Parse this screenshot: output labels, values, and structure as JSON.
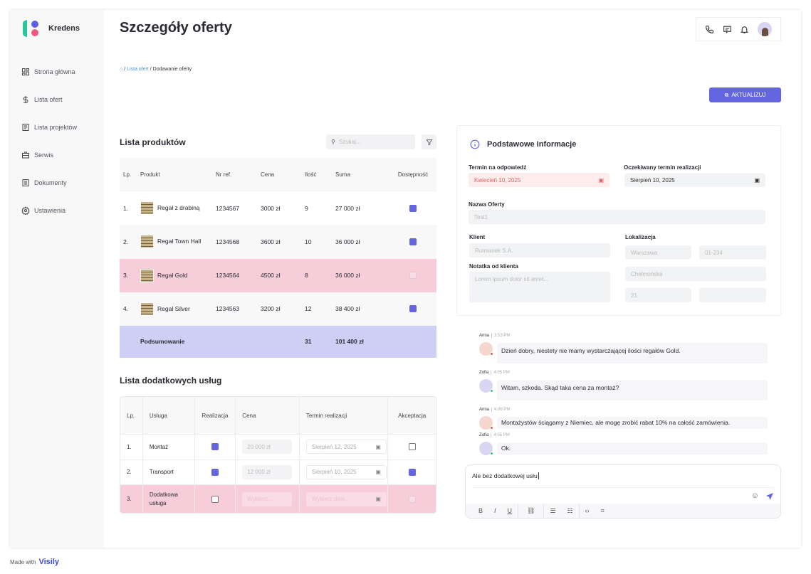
{
  "brand": "Kredens",
  "nav": [
    {
      "label": "Strona główna",
      "icon": "grid-icon"
    },
    {
      "label": "Lista ofert",
      "icon": "dollar-icon"
    },
    {
      "label": "Lista projektów",
      "icon": "document-icon"
    },
    {
      "label": "Serwis",
      "icon": "briefcase-icon"
    },
    {
      "label": "Dokumenty",
      "icon": "file-icon"
    },
    {
      "label": "Ustawienia",
      "icon": "gear-icon"
    }
  ],
  "page_title": "Szczegóły oferty",
  "breadcrumb": {
    "sep": " / ",
    "link": "Lista ofert",
    "current": "Dodawanie oferty"
  },
  "update_button": "AKTUALIZUJ",
  "products": {
    "title": "Lista produktów",
    "search_placeholder": "Szukaj...",
    "headers": [
      "Lp.",
      "Produkt",
      "Nr ref.",
      "Cena",
      "Ilość",
      "Suma",
      "Dostępność"
    ],
    "rows": [
      {
        "lp": "1.",
        "name": "Regał z drabiną",
        "ref": "1234567",
        "price": "3000 zł",
        "qty": "9",
        "sum": "27 000 zł",
        "available": true
      },
      {
        "lp": "2.",
        "name": "Regał Town Hall",
        "ref": "1234568",
        "price": "3600 zł",
        "qty": "10",
        "sum": "36 000 zł",
        "available": true
      },
      {
        "lp": "3.",
        "name": "Regał Gold",
        "ref": "1234564",
        "price": "4500 zł",
        "qty": "8",
        "sum": "36 000 zł",
        "available": false
      },
      {
        "lp": "4.",
        "name": "Regał Silver",
        "ref": "1234563",
        "price": "3200 zł",
        "qty": "12",
        "sum": "38 400 zł",
        "available": true
      }
    ],
    "summary": {
      "label": "Podsumowanie",
      "qty": "31",
      "sum": "101 400 zł"
    }
  },
  "services": {
    "title": "Lista dodatkowych usług",
    "headers": [
      "Lp.",
      "Usługa",
      "Realizacja",
      "Cena",
      "Termin realizacji",
      "Akceptacja"
    ],
    "rows": [
      {
        "lp": "1.",
        "name": "Montaż",
        "done": true,
        "price": "20 000 zł",
        "date": "Sierpień 12, 2025",
        "accepted": false
      },
      {
        "lp": "2.",
        "name": "Transport",
        "done": true,
        "price": "12 000 zł",
        "date": "Sierpień 10, 2025",
        "accepted": true
      },
      {
        "lp": "3.",
        "name": "Dodatkowa usługa",
        "done": false,
        "price": "Wybierz...",
        "date": "Wybierz datę...",
        "accepted": false
      }
    ]
  },
  "info": {
    "title": "Podstawowe informacje",
    "deadline_label": "Termin na odpowiedź",
    "deadline": "Kwiecień 10, 2025",
    "expected_label": "Oczekiwany termin realizacji",
    "expected": "Sierpień 10, 2025",
    "name_label": "Nazwa Oferty",
    "name": "Test1",
    "client_label": "Klient",
    "client": "Rumianek S.A.",
    "note_label": "Notatka od klienta",
    "note_placeholder": "Lorem ipsum dolor sit amet...",
    "location_label": "Lokalizacja",
    "city": "Warszawa",
    "postal": "01-234",
    "street": "Chełmońska",
    "number": "21"
  },
  "chat": {
    "messages": [
      {
        "author": "Anna",
        "time": "3:53 PM",
        "text": "Dzień dobry, niestety nie mamy wystarczającej ilości regałów Gold."
      },
      {
        "author": "Zofia",
        "time": "4:05 PM",
        "text": "Witam, szkoda. Skąd taka cena za montaż?"
      },
      {
        "author": "Anna",
        "time": "4:06 PM",
        "text": "Montażystów ściągamy z Niemiec, ale mogę zrobić rabat 10% na całość zamówienia."
      },
      {
        "author": "Zofia",
        "time": "4:05 PM",
        "text": "Ok."
      }
    ],
    "draft": "Ale bez dodatkowej usłu"
  },
  "footer": {
    "made_with": "Made with",
    "brand": "Visily"
  },
  "colors": {
    "accent": "#6366e0",
    "danger_row": "#f7cdd9",
    "summary_row": "#cdcff5"
  }
}
